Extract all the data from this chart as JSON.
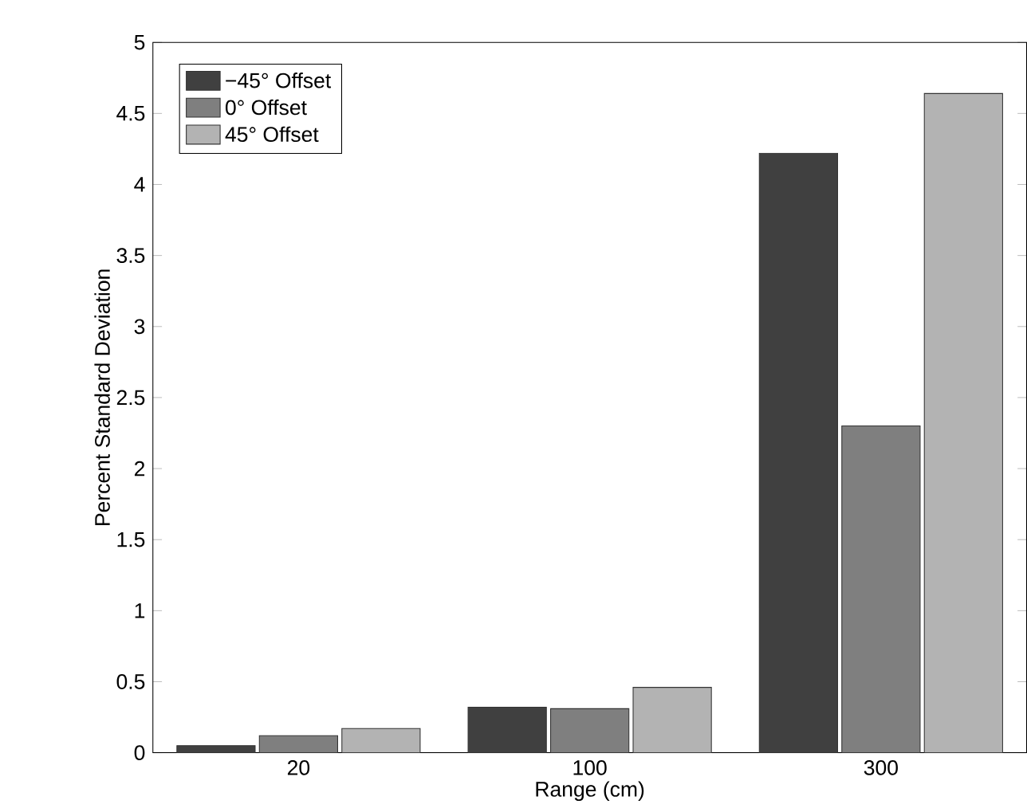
{
  "chart_data": {
    "type": "bar",
    "xlabel": "Range (cm)",
    "ylabel": "Percent Standard Deviation",
    "categories": [
      "20",
      "100",
      "300"
    ],
    "series": [
      {
        "name": "−45° Offset",
        "color": "#404040",
        "values": [
          0.05,
          0.32,
          4.22
        ]
      },
      {
        "name": "0° Offset",
        "color": "#7f7f7f",
        "values": [
          0.12,
          0.31,
          2.3
        ]
      },
      {
        "name": "45° Offset",
        "color": "#b3b3b3",
        "values": [
          0.17,
          0.46,
          4.64
        ]
      }
    ],
    "ylim": [
      0,
      5
    ],
    "yticks": [
      0,
      0.5,
      1,
      1.5,
      2,
      2.5,
      3,
      3.5,
      4,
      4.5,
      5
    ],
    "legend": "top left",
    "grid": false
  }
}
